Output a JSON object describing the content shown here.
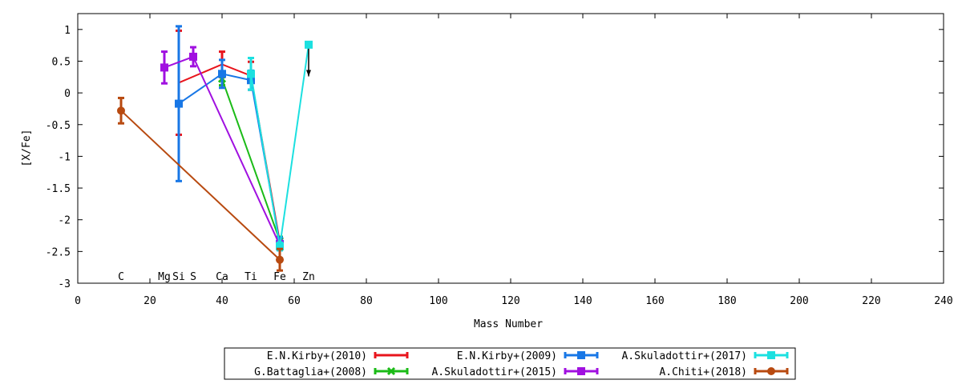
{
  "chart_data": {
    "type": "line",
    "xlabel": "Mass Number",
    "ylabel": "[X/Fe]",
    "xlim": [
      0,
      240
    ],
    "ylim": [
      -3,
      1.25
    ],
    "xticks": [
      0,
      20,
      40,
      60,
      80,
      100,
      120,
      140,
      160,
      180,
      200,
      220,
      240
    ],
    "yticks": [
      1,
      0.5,
      0,
      -0.5,
      -1,
      -1.5,
      -2,
      -2.5,
      -3
    ],
    "xtick_labels": [
      "0",
      "20",
      "40",
      "60",
      "80",
      "100",
      "120",
      "140",
      "160",
      "180",
      "200",
      "220",
      "240"
    ],
    "ytick_labels": [
      "1",
      "0.5",
      "0",
      "-0.5",
      "-1",
      "-1.5",
      "-2",
      "-2.5",
      "-3"
    ],
    "element_labels": [
      {
        "text": "C",
        "x": 12
      },
      {
        "text": "Mg",
        "x": 24
      },
      {
        "text": "Si",
        "x": 28
      },
      {
        "text": "S",
        "x": 32
      },
      {
        "text": "Ca",
        "x": 40
      },
      {
        "text": "Ti",
        "x": 48
      },
      {
        "text": "Fe",
        "x": 56
      },
      {
        "text": "Zn",
        "x": 64
      }
    ],
    "grid": false,
    "legend_position": "bottom-center",
    "series": [
      {
        "name": "E.N.Kirby+(2010)",
        "color": "#e8141c",
        "marker": "none",
        "points": [
          {
            "x": 28,
            "y": 0.16,
            "err": 0.82
          },
          {
            "x": 40,
            "y": 0.45,
            "err": 0.2
          },
          {
            "x": 48,
            "y": 0.27,
            "err": 0.22
          },
          {
            "x": 56,
            "y": -2.35,
            "err": 0.08
          }
        ]
      },
      {
        "name": "G.Battaglia+(2008)",
        "color": "#1bbb17",
        "marker": "x",
        "points": [
          {
            "x": 40,
            "y": 0.22,
            "err": 0.1
          },
          {
            "x": 56,
            "y": -2.33,
            "err": 0.06
          }
        ]
      },
      {
        "name": "E.N.Kirby+(2009)",
        "color": "#1877e6",
        "marker": "square",
        "points": [
          {
            "x": 28,
            "y": -0.17,
            "err": 1.22
          },
          {
            "x": 40,
            "y": 0.3,
            "err": 0.22
          },
          {
            "x": 48,
            "y": 0.2,
            "err": 0.15
          },
          {
            "x": 56,
            "y": -2.38,
            "err": 0.1
          }
        ]
      },
      {
        "name": "A.Skuladottir+(2015)",
        "color": "#a010e0",
        "marker": "square",
        "points": [
          {
            "x": 24,
            "y": 0.4,
            "err": 0.25
          },
          {
            "x": 32,
            "y": 0.57,
            "err": 0.15
          },
          {
            "x": 56,
            "y": -2.4,
            "err": 0.07
          }
        ]
      },
      {
        "name": "A.Skuladottir+(2017)",
        "color": "#1ce0e0",
        "marker": "square",
        "points": [
          {
            "x": 48,
            "y": 0.3,
            "err": 0.25
          },
          {
            "x": 56,
            "y": -2.42,
            "err": 0.06
          },
          {
            "x": 64,
            "y": 0.76,
            "err": 0,
            "upper_limit": true
          }
        ]
      },
      {
        "name": "A.Chiti+(2018)",
        "color": "#b84a10",
        "marker": "circle",
        "points": [
          {
            "x": 12,
            "y": -0.28,
            "err": 0.2
          },
          {
            "x": 56,
            "y": -2.63,
            "err": 0.17
          }
        ]
      }
    ]
  }
}
